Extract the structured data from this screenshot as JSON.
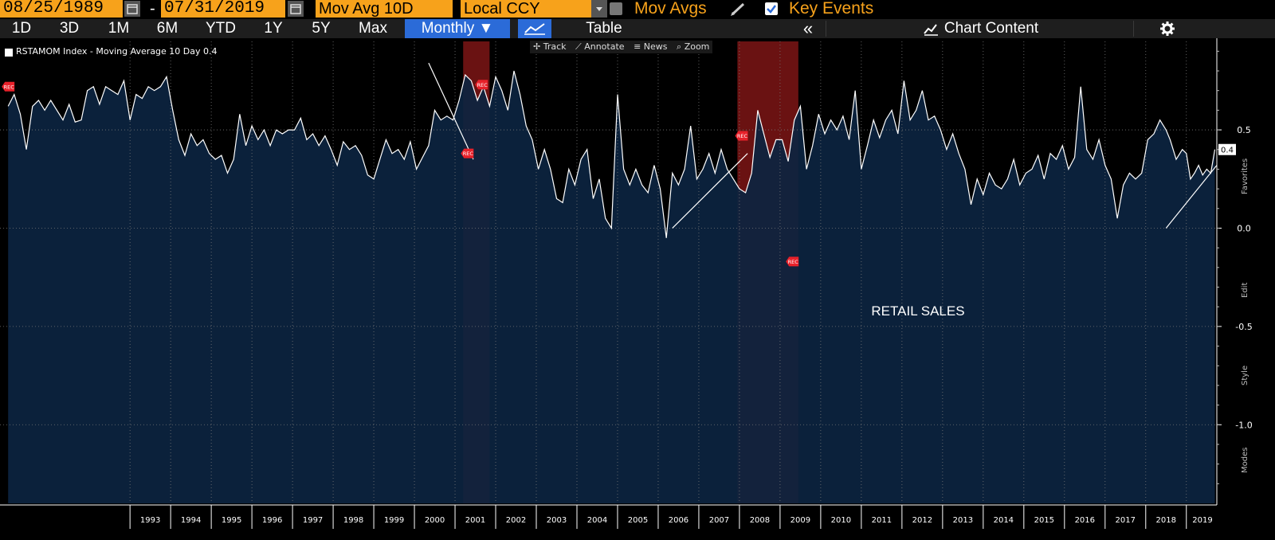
{
  "toolbar": {
    "start_date": "08/25/1989",
    "end_date": "07/31/2019",
    "date_separator": "-",
    "study": "Mov Avg 10D",
    "currency": "Local CCY",
    "mov_avgs_label": "Mov Avgs",
    "key_events_label": "Key Events"
  },
  "ranges": {
    "r1d": "1D",
    "r3d": "3D",
    "r1m": "1M",
    "r6m": "6M",
    "rytd": "YTD",
    "r1y": "1Y",
    "r5y": "5Y",
    "rmax": "Max",
    "frequency": "Monthly ▼",
    "table": "Table",
    "collapse": "«",
    "chart_content": "Chart Content"
  },
  "chart_tools": {
    "track": "Track",
    "annotate": "Annotate",
    "news": "News",
    "zoom": "Zoom"
  },
  "side_tabs": {
    "favorites": "Favorites",
    "edit": "Edit",
    "style": "Style",
    "modes": "Modes"
  },
  "colors": {
    "background": "#000000",
    "area_fill": "#0c2440",
    "line": "#ffffff",
    "recession": "#b01e1e",
    "accent": "#f7a21b",
    "event_marker": "#e8212a",
    "selected": "#2b6bd8"
  },
  "chart_data": {
    "type": "area",
    "title": "",
    "legend": "RSTAMOM Index - Moving Average 10 Day 0.4",
    "annotation": "RETAIL SALES",
    "last_value_label": "0.4",
    "xlabel": "",
    "ylabel": "",
    "ylim": [
      -1.4,
      0.95
    ],
    "xlim": [
      1989.8,
      2019.75
    ],
    "y_ticks": [
      {
        "value": 0.5,
        "label": "0.5"
      },
      {
        "value": 0.0,
        "label": "0.0"
      },
      {
        "value": -0.5,
        "label": "-0.5"
      },
      {
        "value": -1.0,
        "label": "-1.0"
      }
    ],
    "x_ticks": [
      "1993",
      "1994",
      "1995",
      "1996",
      "1997",
      "1998",
      "1999",
      "2000",
      "2001",
      "2002",
      "2003",
      "2004",
      "2005",
      "2006",
      "2007",
      "2008",
      "2009",
      "2010",
      "2011",
      "2012",
      "2013",
      "2014",
      "2015",
      "2016",
      "2017",
      "2018",
      "2019"
    ],
    "recessions": [
      {
        "start": 2001.2,
        "end": 2001.85
      },
      {
        "start": 2007.95,
        "end": 2009.45
      }
    ],
    "event_markers": [
      {
        "x": 1990.0,
        "y": 0.72,
        "label": "REC"
      },
      {
        "x": 2001.3,
        "y": 0.38,
        "label": "REC"
      },
      {
        "x": 2001.65,
        "y": 0.73,
        "label": "REC"
      },
      {
        "x": 2008.05,
        "y": 0.47,
        "label": "REC"
      },
      {
        "x": 2009.3,
        "y": -0.17,
        "label": "REC"
      }
    ],
    "trend_lines": [
      {
        "x1": 2000.35,
        "y1": 0.84,
        "x2": 2001.45,
        "y2": 0.35
      },
      {
        "x1": 2006.35,
        "y1": 0.0,
        "x2": 2008.2,
        "y2": 0.38
      },
      {
        "x1": 2018.5,
        "y1": 0.0,
        "x2": 2019.75,
        "y2": 0.32
      }
    ],
    "series": [
      {
        "name": "RSTAMOM Index - Moving Average 10 Day",
        "points": [
          [
            1990.0,
            0.62
          ],
          [
            1990.15,
            0.68
          ],
          [
            1990.3,
            0.58
          ],
          [
            1990.45,
            0.4
          ],
          [
            1990.6,
            0.62
          ],
          [
            1990.75,
            0.65
          ],
          [
            1990.9,
            0.6
          ],
          [
            1991.05,
            0.65
          ],
          [
            1991.2,
            0.6
          ],
          [
            1991.35,
            0.55
          ],
          [
            1991.5,
            0.63
          ],
          [
            1991.65,
            0.54
          ],
          [
            1991.8,
            0.55
          ],
          [
            1991.95,
            0.7
          ],
          [
            1992.1,
            0.72
          ],
          [
            1992.25,
            0.63
          ],
          [
            1992.4,
            0.72
          ],
          [
            1992.55,
            0.7
          ],
          [
            1992.7,
            0.68
          ],
          [
            1992.85,
            0.75
          ],
          [
            1993.0,
            0.55
          ],
          [
            1993.15,
            0.68
          ],
          [
            1993.3,
            0.66
          ],
          [
            1993.45,
            0.72
          ],
          [
            1993.6,
            0.7
          ],
          [
            1993.75,
            0.72
          ],
          [
            1993.9,
            0.77
          ],
          [
            1994.05,
            0.6
          ],
          [
            1994.2,
            0.45
          ],
          [
            1994.35,
            0.37
          ],
          [
            1994.5,
            0.48
          ],
          [
            1994.65,
            0.42
          ],
          [
            1994.8,
            0.45
          ],
          [
            1994.95,
            0.38
          ],
          [
            1995.1,
            0.35
          ],
          [
            1995.25,
            0.37
          ],
          [
            1995.4,
            0.28
          ],
          [
            1995.55,
            0.35
          ],
          [
            1995.7,
            0.58
          ],
          [
            1995.85,
            0.42
          ],
          [
            1996.0,
            0.52
          ],
          [
            1996.15,
            0.45
          ],
          [
            1996.3,
            0.5
          ],
          [
            1996.45,
            0.42
          ],
          [
            1996.6,
            0.5
          ],
          [
            1996.75,
            0.48
          ],
          [
            1996.9,
            0.5
          ],
          [
            1997.05,
            0.5
          ],
          [
            1997.2,
            0.56
          ],
          [
            1997.35,
            0.45
          ],
          [
            1997.5,
            0.48
          ],
          [
            1997.65,
            0.42
          ],
          [
            1997.8,
            0.47
          ],
          [
            1997.95,
            0.4
          ],
          [
            1998.1,
            0.32
          ],
          [
            1998.25,
            0.44
          ],
          [
            1998.4,
            0.4
          ],
          [
            1998.55,
            0.42
          ],
          [
            1998.7,
            0.37
          ],
          [
            1998.85,
            0.27
          ],
          [
            1999.0,
            0.25
          ],
          [
            1999.15,
            0.35
          ],
          [
            1999.3,
            0.45
          ],
          [
            1999.45,
            0.38
          ],
          [
            1999.6,
            0.4
          ],
          [
            1999.75,
            0.35
          ],
          [
            1999.9,
            0.44
          ],
          [
            2000.05,
            0.3
          ],
          [
            2000.2,
            0.36
          ],
          [
            2000.35,
            0.42
          ],
          [
            2000.5,
            0.6
          ],
          [
            2000.65,
            0.55
          ],
          [
            2000.8,
            0.57
          ],
          [
            2000.95,
            0.55
          ],
          [
            2001.1,
            0.65
          ],
          [
            2001.25,
            0.78
          ],
          [
            2001.4,
            0.75
          ],
          [
            2001.55,
            0.65
          ],
          [
            2001.7,
            0.72
          ],
          [
            2001.85,
            0.62
          ],
          [
            2002.0,
            0.77
          ],
          [
            2002.15,
            0.7
          ],
          [
            2002.3,
            0.6
          ],
          [
            2002.45,
            0.8
          ],
          [
            2002.6,
            0.68
          ],
          [
            2002.75,
            0.52
          ],
          [
            2002.9,
            0.45
          ],
          [
            2003.05,
            0.3
          ],
          [
            2003.2,
            0.4
          ],
          [
            2003.35,
            0.3
          ],
          [
            2003.5,
            0.15
          ],
          [
            2003.65,
            0.13
          ],
          [
            2003.8,
            0.3
          ],
          [
            2003.95,
            0.22
          ],
          [
            2004.1,
            0.35
          ],
          [
            2004.25,
            0.4
          ],
          [
            2004.4,
            0.15
          ],
          [
            2004.55,
            0.25
          ],
          [
            2004.7,
            0.05
          ],
          [
            2004.85,
            0.0
          ],
          [
            2005.0,
            0.68
          ],
          [
            2005.15,
            0.3
          ],
          [
            2005.3,
            0.22
          ],
          [
            2005.45,
            0.3
          ],
          [
            2005.6,
            0.22
          ],
          [
            2005.75,
            0.18
          ],
          [
            2005.9,
            0.32
          ],
          [
            2006.05,
            0.2
          ],
          [
            2006.2,
            -0.05
          ],
          [
            2006.35,
            0.28
          ],
          [
            2006.5,
            0.22
          ],
          [
            2006.65,
            0.3
          ],
          [
            2006.8,
            0.52
          ],
          [
            2006.95,
            0.25
          ],
          [
            2007.1,
            0.3
          ],
          [
            2007.25,
            0.38
          ],
          [
            2007.4,
            0.28
          ],
          [
            2007.55,
            0.4
          ],
          [
            2007.7,
            0.3
          ],
          [
            2007.85,
            0.25
          ],
          [
            2008.0,
            0.2
          ],
          [
            2008.15,
            0.18
          ],
          [
            2008.3,
            0.28
          ],
          [
            2008.45,
            0.6
          ],
          [
            2008.6,
            0.48
          ],
          [
            2008.75,
            0.36
          ],
          [
            2008.9,
            0.45
          ],
          [
            2009.05,
            0.45
          ],
          [
            2009.2,
            0.34
          ],
          [
            2009.35,
            0.55
          ],
          [
            2009.5,
            0.62
          ],
          [
            2009.65,
            0.3
          ],
          [
            2009.8,
            0.42
          ],
          [
            2009.95,
            0.58
          ],
          [
            2010.1,
            0.48
          ],
          [
            2010.25,
            0.55
          ],
          [
            2010.4,
            0.5
          ],
          [
            2010.55,
            0.57
          ],
          [
            2010.7,
            0.45
          ],
          [
            2010.85,
            0.7
          ],
          [
            2011.0,
            0.3
          ],
          [
            2011.15,
            0.42
          ],
          [
            2011.3,
            0.55
          ],
          [
            2011.45,
            0.46
          ],
          [
            2011.6,
            0.55
          ],
          [
            2011.75,
            0.6
          ],
          [
            2011.9,
            0.48
          ],
          [
            2012.05,
            0.75
          ],
          [
            2012.2,
            0.55
          ],
          [
            2012.35,
            0.6
          ],
          [
            2012.5,
            0.7
          ],
          [
            2012.65,
            0.55
          ],
          [
            2012.8,
            0.57
          ],
          [
            2012.95,
            0.5
          ],
          [
            2013.1,
            0.4
          ],
          [
            2013.25,
            0.48
          ],
          [
            2013.4,
            0.38
          ],
          [
            2013.55,
            0.3
          ],
          [
            2013.7,
            0.12
          ],
          [
            2013.85,
            0.25
          ],
          [
            2014.0,
            0.17
          ],
          [
            2014.15,
            0.28
          ],
          [
            2014.3,
            0.22
          ],
          [
            2014.45,
            0.2
          ],
          [
            2014.6,
            0.25
          ],
          [
            2014.75,
            0.35
          ],
          [
            2014.9,
            0.22
          ],
          [
            2015.05,
            0.28
          ],
          [
            2015.2,
            0.3
          ],
          [
            2015.35,
            0.37
          ],
          [
            2015.5,
            0.25
          ],
          [
            2015.65,
            0.38
          ],
          [
            2015.8,
            0.35
          ],
          [
            2015.95,
            0.42
          ],
          [
            2016.1,
            0.3
          ],
          [
            2016.25,
            0.36
          ],
          [
            2016.4,
            0.72
          ],
          [
            2016.55,
            0.4
          ],
          [
            2016.7,
            0.35
          ],
          [
            2016.85,
            0.45
          ],
          [
            2017.0,
            0.32
          ],
          [
            2017.15,
            0.25
          ],
          [
            2017.3,
            0.05
          ],
          [
            2017.45,
            0.22
          ],
          [
            2017.6,
            0.28
          ],
          [
            2017.75,
            0.25
          ],
          [
            2017.9,
            0.28
          ],
          [
            2018.05,
            0.45
          ],
          [
            2018.2,
            0.48
          ],
          [
            2018.35,
            0.55
          ],
          [
            2018.5,
            0.5
          ],
          [
            2018.6,
            0.45
          ],
          [
            2018.75,
            0.35
          ],
          [
            2018.9,
            0.4
          ],
          [
            2019.0,
            0.38
          ],
          [
            2019.1,
            0.25
          ],
          [
            2019.2,
            0.28
          ],
          [
            2019.3,
            0.32
          ],
          [
            2019.4,
            0.27
          ],
          [
            2019.5,
            0.3
          ],
          [
            2019.6,
            0.28
          ],
          [
            2019.7,
            0.4
          ]
        ]
      }
    ]
  }
}
